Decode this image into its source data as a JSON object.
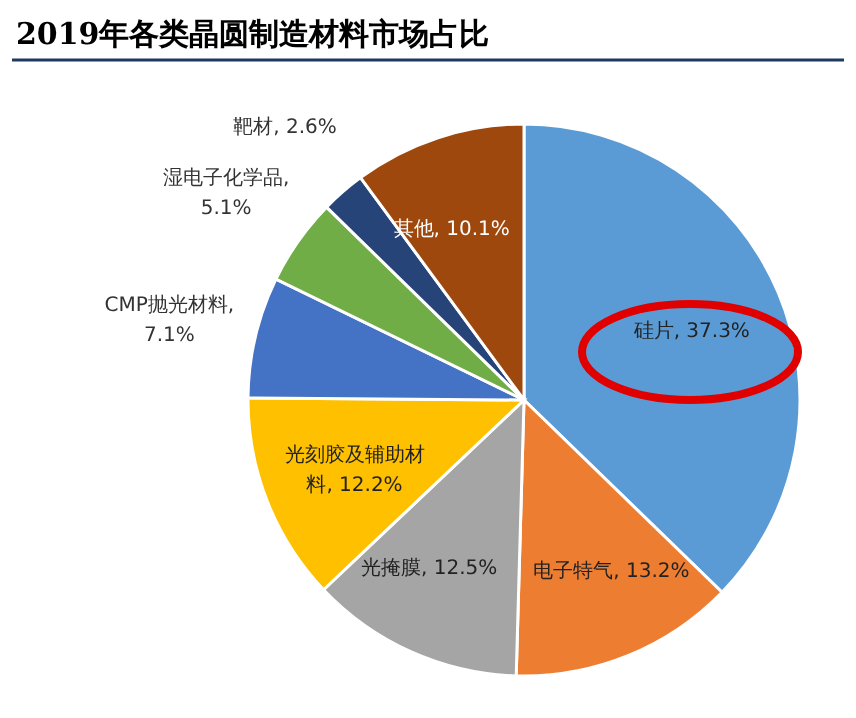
{
  "chart_data": {
    "type": "pie",
    "title": "2019年各类晶圆制造材料市场占比",
    "categories": [
      "硅片, 37.3%",
      "电子特气, 13.2%",
      "光掩膜, 12.5%",
      "光刻胶及辅助材料, 12.2%",
      "CMP抛光材料, 7.1%",
      "湿电子化学品, 5.1%",
      "靶材, 2.6%",
      "其他, 10.1%"
    ],
    "values": [
      37.3,
      13.2,
      12.5,
      12.2,
      7.1,
      5.1,
      2.6,
      10.1
    ],
    "colors": [
      "#5b9bd5",
      "#ed7d31",
      "#a5a5a5",
      "#ffc000",
      "#4472c4",
      "#70ad47",
      "#264478",
      "#9e480e"
    ]
  }
}
